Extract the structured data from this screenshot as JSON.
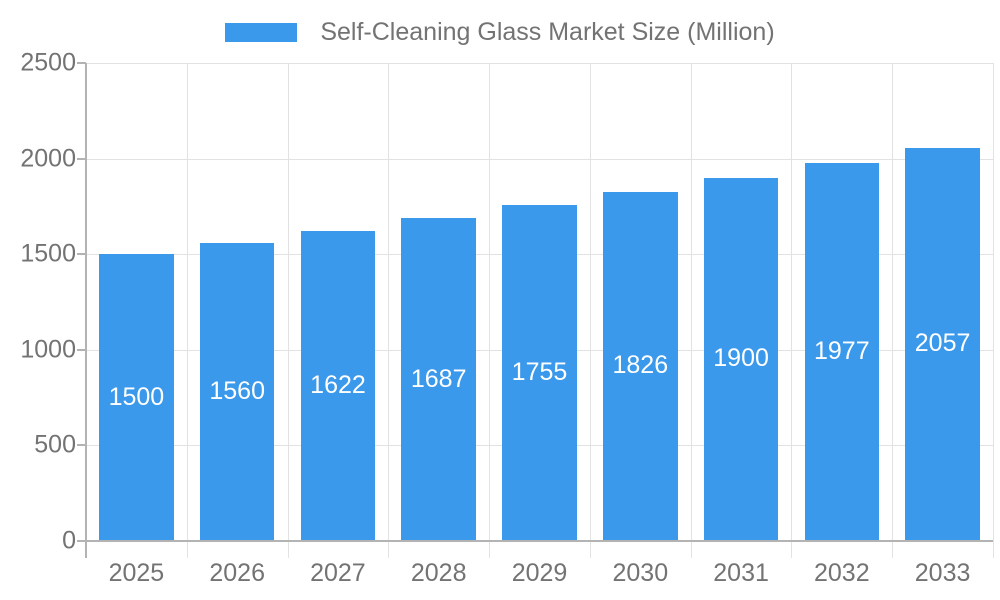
{
  "chart_data": {
    "type": "bar",
    "title": "Self-Cleaning Glass Market Size (Million)",
    "series_name": "Self-Cleaning Glass Market Size (Million)",
    "categories": [
      "2025",
      "2026",
      "2027",
      "2028",
      "2029",
      "2030",
      "2031",
      "2032",
      "2033"
    ],
    "values": [
      1500,
      1560,
      1622,
      1687,
      1755,
      1826,
      1900,
      1977,
      2057
    ],
    "bar_labels": [
      "1500",
      "1560",
      "1622",
      "1687",
      "1755",
      "1826",
      "1900",
      "1977",
      "2057"
    ],
    "xlabel": "",
    "ylabel": "",
    "ylim": [
      0,
      2500
    ],
    "yticks": [
      0,
      500,
      1000,
      1500,
      2000,
      2500
    ],
    "ytick_labels": [
      "0",
      "500",
      "1000",
      "1500",
      "2000",
      "2500"
    ],
    "grid": true,
    "legend_position": "top-center",
    "bar_label_position": "inside-center",
    "colors": {
      "bar": "#3b99ec",
      "bar_label": "#ffffff",
      "axis_text": "#737373",
      "grid_line": "#e2e2e2",
      "axis_line": "#b3b3b3",
      "background": "#ffffff"
    }
  }
}
